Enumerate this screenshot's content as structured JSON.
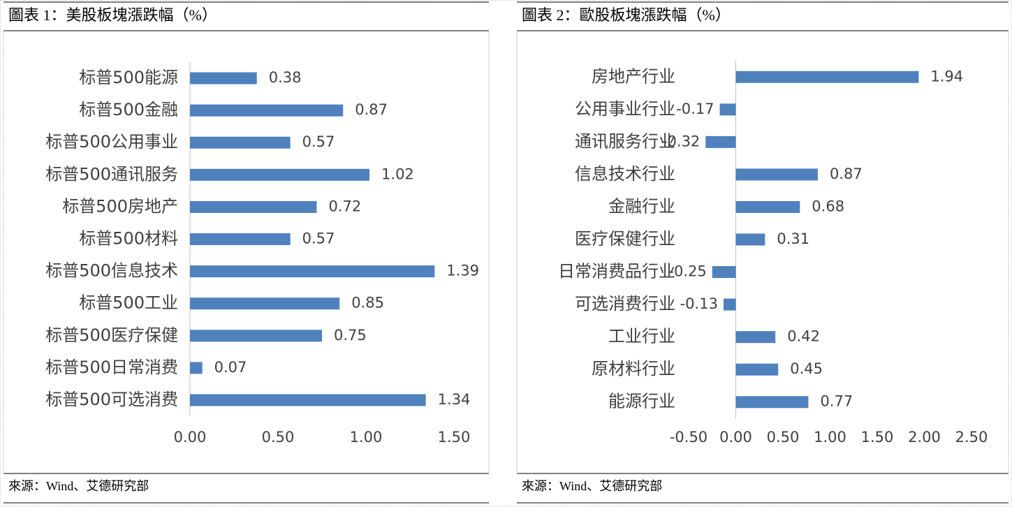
{
  "chart_data": [
    {
      "type": "bar",
      "orientation": "horizontal",
      "title": "圖表 1：美股板塊漲跌幅（%）",
      "source": "來源：Wind、艾德研究部",
      "categories": [
        "标普500能源",
        "标普500金融",
        "标普500公用事业",
        "标普500通讯服务",
        "标普500房地产",
        "标普500材料",
        "标普500信息技术",
        "标普500工业",
        "标普500医疗保健",
        "标普500日常消费",
        "标普500可选消费"
      ],
      "values": [
        0.38,
        0.87,
        0.57,
        1.02,
        0.72,
        0.57,
        1.39,
        0.85,
        0.75,
        0.07,
        1.34
      ],
      "color": "#4f81bd",
      "xlim": [
        0,
        1.5
      ],
      "xticks": [
        {
          "value": 0,
          "label": "0.00"
        },
        {
          "value": 0.5,
          "label": "0.50"
        },
        {
          "value": 1,
          "label": "1.00"
        },
        {
          "value": 1.5,
          "label": "1.50"
        }
      ],
      "grid": false
    },
    {
      "type": "bar",
      "orientation": "horizontal",
      "title": "圖表 2：歐股板塊漲跌幅（%）",
      "source": "來源：Wind、艾德研究部",
      "categories": [
        "房地产行业",
        "公用事业行业",
        "通讯服务行业",
        "信息技术行业",
        "金融行业",
        "医疗保健行业",
        "日常消费品行业",
        "可选消费行业",
        "工业行业",
        "原材料行业",
        "能源行业"
      ],
      "values": [
        1.94,
        -0.17,
        -0.32,
        0.87,
        0.68,
        0.31,
        -0.25,
        -0.13,
        0.42,
        0.45,
        0.77
      ],
      "color": "#4f81bd",
      "xlim": [
        -0.5,
        2.5
      ],
      "xticks": [
        {
          "value": -0.5,
          "label": "-0.50"
        },
        {
          "value": 0,
          "label": "0.00"
        },
        {
          "value": 0.5,
          "label": "0.50"
        },
        {
          "value": 1,
          "label": "1.00"
        },
        {
          "value": 1.5,
          "label": "1.50"
        },
        {
          "value": 2,
          "label": "2.00"
        },
        {
          "value": 2.5,
          "label": "2.50"
        }
      ],
      "grid": false
    }
  ]
}
